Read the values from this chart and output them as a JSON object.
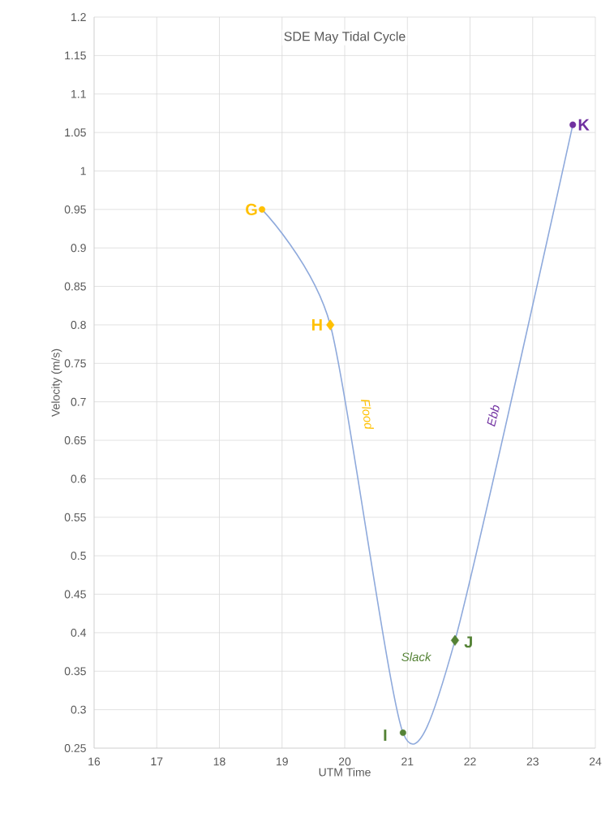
{
  "chart_data": {
    "type": "line",
    "title": "SDE May Tidal Cycle",
    "xlabel": "UTM Time",
    "ylabel": "Velocity (m/s)",
    "xlim": [
      16,
      24
    ],
    "xticks": [
      16,
      17,
      18,
      19,
      20,
      21,
      22,
      23,
      24
    ],
    "ylim": [
      0.25,
      1.2
    ],
    "yticks": [
      0.25,
      0.3,
      0.35,
      0.4,
      0.45,
      0.5,
      0.55,
      0.6,
      0.65,
      0.7,
      0.75,
      0.8,
      0.85,
      0.9,
      0.95,
      1,
      1.05,
      1.1,
      1.15,
      1.2
    ],
    "grid": true,
    "line_style": "solid",
    "series": [
      {
        "color": "#8faadc",
        "marker": "none",
        "x": [
          18.68,
          19.77,
          20.93,
          21.76,
          23.64
        ],
        "values": [
          0.95,
          0.8,
          0.27,
          0.39,
          1.06
        ]
      },
      {
        "type": "scatter",
        "color": "#ffc000",
        "marker": "circle",
        "x": [
          18.68
        ],
        "values": [
          0.95
        ]
      },
      {
        "type": "scatter",
        "color": "#ffc000",
        "marker": "diamond",
        "x": [
          19.77
        ],
        "values": [
          0.8
        ]
      },
      {
        "type": "scatter",
        "color": "#548235",
        "marker": "circle",
        "x": [
          20.93
        ],
        "values": [
          0.27
        ]
      },
      {
        "type": "scatter",
        "color": "#548235",
        "marker": "diamond",
        "x": [
          21.76
        ],
        "values": [
          0.39
        ]
      },
      {
        "type": "scatter",
        "color": "#7030a0",
        "marker": "circle",
        "x": [
          23.64
        ],
        "values": [
          1.06
        ]
      }
    ],
    "annotations": [
      {
        "text": "G",
        "x": 18.68,
        "y": 0.95
      },
      {
        "text": "H",
        "x": 19.77,
        "y": 0.8
      },
      {
        "text": "I",
        "x": 20.93,
        "y": 0.27
      },
      {
        "text": "J",
        "x": 21.76,
        "y": 0.39
      },
      {
        "text": "K",
        "x": 23.64,
        "y": 1.06
      },
      "Flood",
      "Ebb",
      "Slack"
    ]
  }
}
